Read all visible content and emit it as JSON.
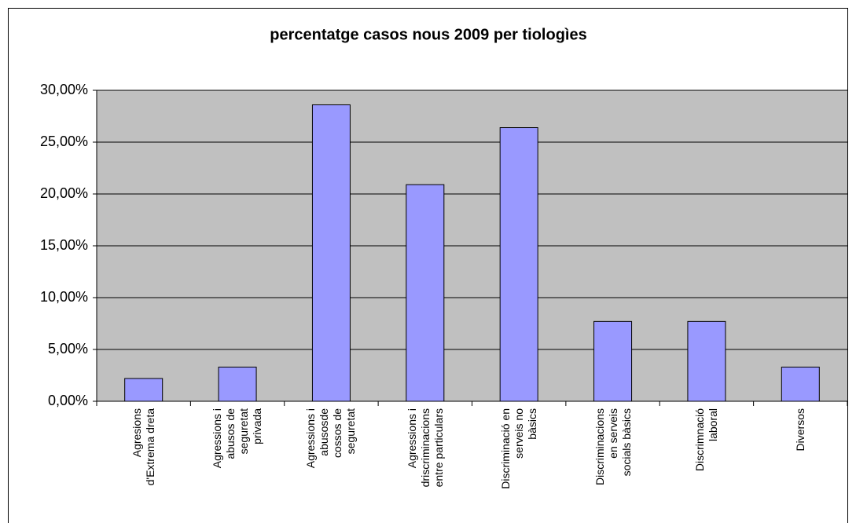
{
  "chart_data": {
    "type": "bar",
    "title": "percentatge casos nous 2009 per tiologìes",
    "categories": [
      "Agresions\nd'Extrema dreta",
      "Agressions i\nabusos de\nseguretat\nprivada",
      "Agressions i\nabusosde\ncossos de\nseguretat",
      "Agressions i\ndriscriminacions\nentre particulars",
      "Discriminació en\nserveis no\nbàsics",
      "Discriminacions\nen serveis\nsocials bàsics",
      "Discrimnació\nlaboral",
      "Diversos"
    ],
    "values": [
      2.2,
      3.3,
      28.6,
      20.9,
      26.4,
      7.7,
      7.7,
      3.3
    ],
    "color": "#9999ff",
    "ylim": [
      0,
      30
    ],
    "yticks": [
      {
        "value": 0,
        "label": "0,00%"
      },
      {
        "value": 5,
        "label": "5,00%"
      },
      {
        "value": 10,
        "label": "10,00%"
      },
      {
        "value": 15,
        "label": "15,00%"
      },
      {
        "value": 20,
        "label": "20,00%"
      },
      {
        "value": 25,
        "label": "25,00%"
      },
      {
        "value": 30,
        "label": "30,00%"
      }
    ],
    "grid": true
  }
}
